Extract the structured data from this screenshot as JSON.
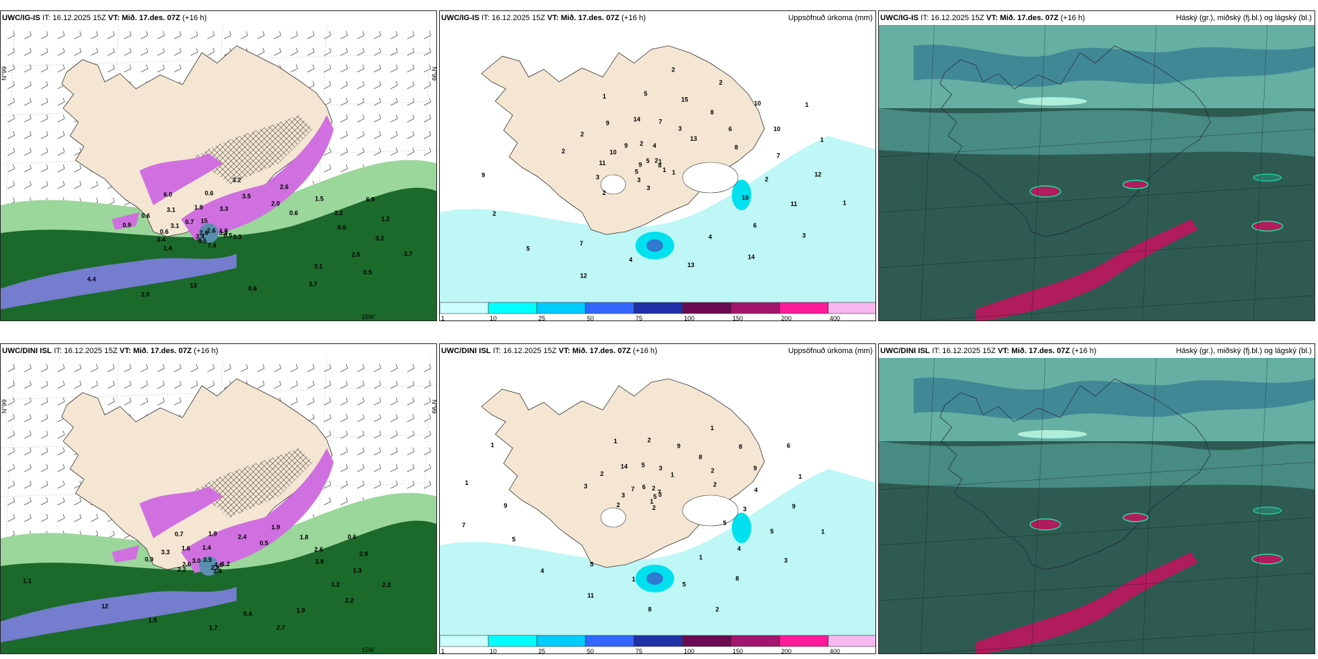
{
  "rows": [
    {
      "model": "UWC/IG-IS",
      "it_label": "IT:",
      "it_time": "16.12.2025 15Z",
      "vt_label": "VT:",
      "vt_time": "Mið. 17.des. 07Z",
      "lead": "(+16 h)",
      "panels": [
        {
          "title_right": "",
          "labels": [
            "1.5",
            "1.4",
            "3.2",
            "3.3",
            "0.9",
            "6.9",
            "7.4",
            "6.0",
            "3.7",
            "3.4",
            "2.6",
            "0.5",
            "0.6",
            "1.2",
            "0.5",
            "0.6",
            "0.5",
            "0.6",
            "1.5",
            "3.3",
            "3.1",
            "3.2",
            "3.4",
            "3.5",
            "3.7",
            "3.1",
            "2.2",
            "2.0",
            "1.9",
            "2.5",
            "2.6",
            "2.0",
            "0.6",
            "0.7",
            "0.6",
            "4.4",
            "3.3",
            "3.1",
            "2.6",
            "0.6",
            "13",
            "15"
          ],
          "side_labels": [
            "N°99",
            "N°99",
            "15W"
          ]
        },
        {
          "title_right": "Uppsöfnuð úrkoma (mm)",
          "labels": [
            "1",
            "2",
            "2",
            "1",
            "2",
            "1",
            "3",
            "1",
            "1",
            "3",
            "2",
            "1",
            "2",
            "1",
            "3",
            "5",
            "3",
            "11",
            "10",
            "8",
            "9",
            "12",
            "5",
            "15",
            "14",
            "10",
            "10",
            "12",
            "14",
            "11",
            "9",
            "8",
            "13",
            "9",
            "7",
            "5",
            "7",
            "6",
            "5",
            "6",
            "4",
            "2",
            "2",
            "2",
            "3",
            "4",
            "2",
            "8",
            "7",
            "4",
            "10",
            "9",
            "13"
          ]
        },
        {
          "title_right": "Háský (gr.), miðský (fj.bl.) og lágský (bl.)",
          "labels": []
        }
      ]
    },
    {
      "model": "UWC/DINI ISL",
      "it_label": "IT:",
      "it_time": "16.12.2025 15Z",
      "vt_label": "VT:",
      "vt_time": "Mið. 17.des. 07Z",
      "lead": "(+16 h)",
      "panels": [
        {
          "title_right": "",
          "labels": [
            "-1.2",
            "0.9",
            "0.6",
            "3.4",
            "0.7",
            "2.3",
            "2.2",
            "1.9",
            "2.7",
            "3.3",
            "2.9",
            "2.8",
            "1.9",
            "2.2",
            "2.0",
            "1.8",
            "1.7",
            "1.6",
            "1.3",
            "4.8",
            "2.4",
            "1.9",
            "3.0",
            "2.6",
            "1.5",
            "1.4",
            "1.2",
            "1.1",
            "0.5",
            "0.4",
            "3.5",
            "3.9",
            "12"
          ],
          "side_labels": [
            "N°99",
            "N°99",
            "15W"
          ]
        },
        {
          "title_right": "Uppsöfnuð úrkoma (mm)",
          "labels": [
            "3",
            "3",
            "6",
            "2",
            "1",
            "1",
            "2",
            "1",
            "2",
            "2",
            "1",
            "1",
            "2",
            "3",
            "3",
            "8",
            "8",
            "14",
            "9",
            "5",
            "9",
            "8",
            "7",
            "9",
            "11",
            "5",
            "5",
            "7",
            "8",
            "5",
            "6",
            "4",
            "4",
            "3",
            "4",
            "1",
            "2",
            "1",
            "2",
            "3",
            "5",
            "1",
            "1",
            "1",
            "2",
            "5",
            "7",
            "5",
            "9"
          ]
        },
        {
          "title_right": "Háský (gr.), miðský (fj.bl.) og lágský (bl.)",
          "labels": []
        }
      ]
    }
  ],
  "colorbar": {
    "ticks": [
      "1",
      "10",
      "25",
      "50",
      "75",
      "100",
      "150",
      "200",
      "400"
    ],
    "colors": [
      "#ccffff",
      "#00ffff",
      "#00ccff",
      "#3366ff",
      "#1f2fa8",
      "#6b0a52",
      "#a3166e",
      "#ff1a9a",
      "#f7b8f0"
    ]
  },
  "colors": {
    "land": "#f5e6d3",
    "sea": "#ffffff",
    "precip_light": "#bff6f6",
    "cloud_dark": "#2e5a52",
    "cloud_mid": "#4a9088",
    "cloud_light": "#6fbeb2",
    "green_dark": "#0d5e1f",
    "green_light": "#9bd69b",
    "magenta": "#d070e0"
  }
}
